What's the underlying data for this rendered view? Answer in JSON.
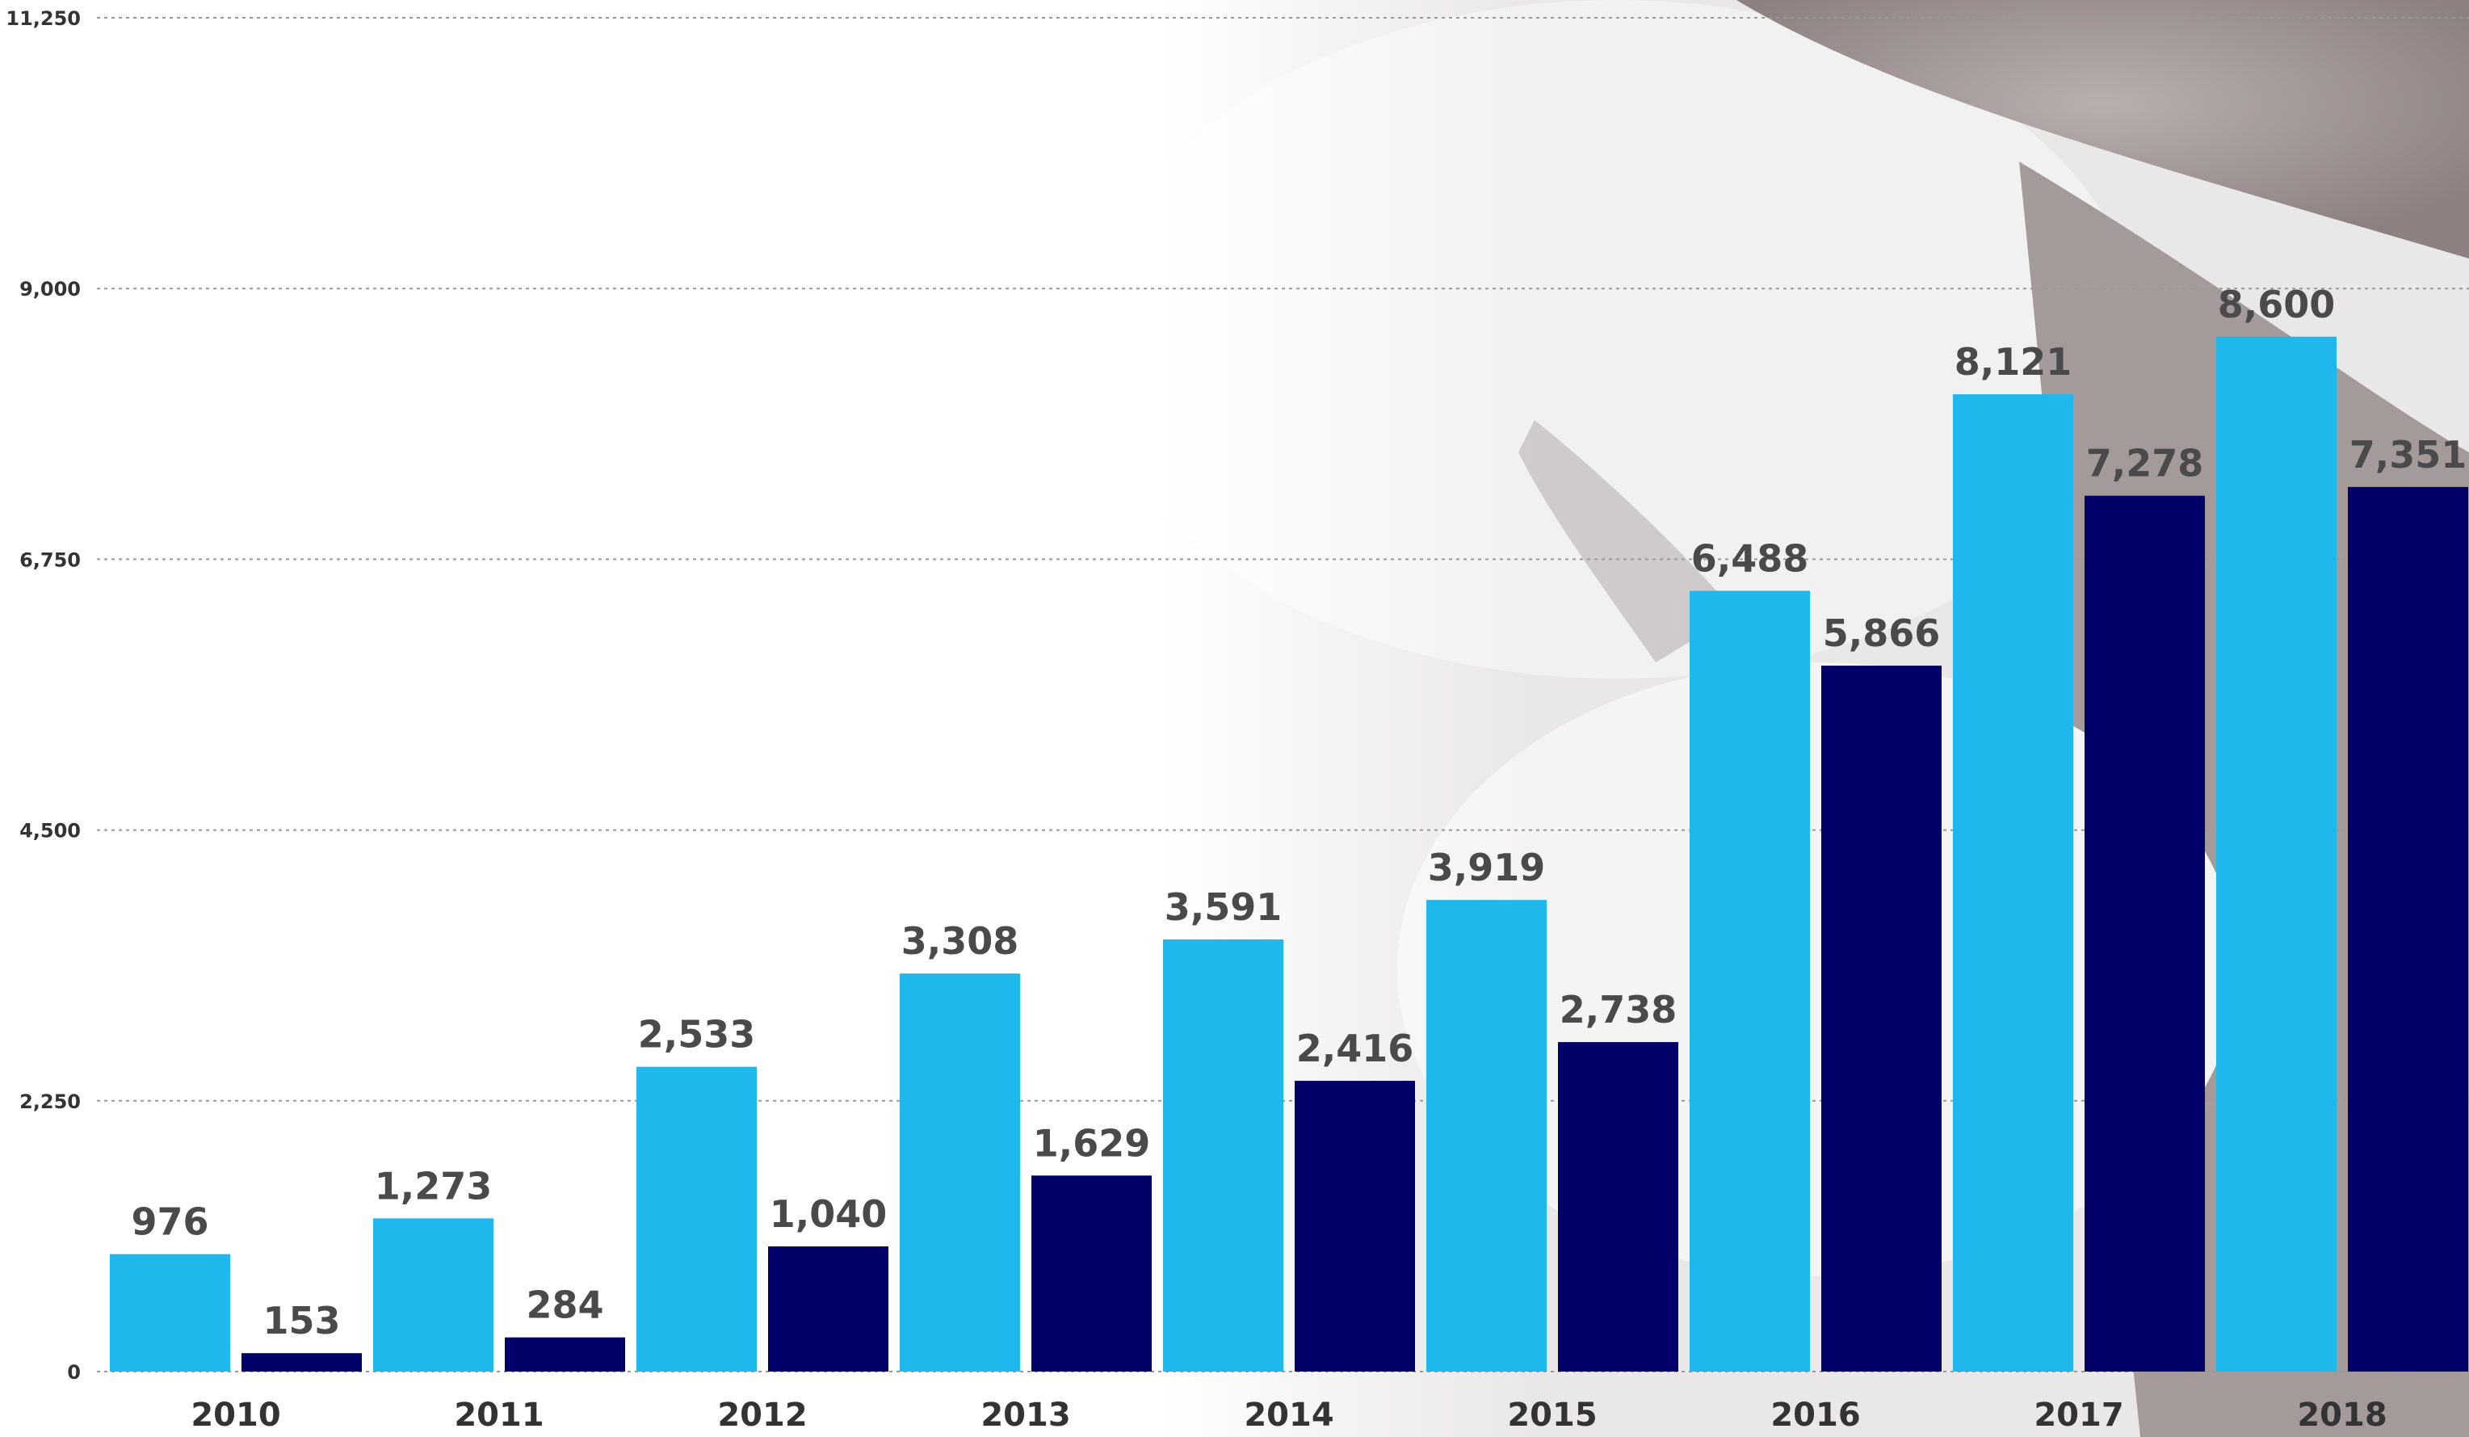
{
  "chart_data": {
    "type": "bar",
    "categories": [
      "2010",
      "2011",
      "2012",
      "2013",
      "2014",
      "2015",
      "2016",
      "2017",
      "2018"
    ],
    "series": [
      {
        "values": [
          976,
          1273,
          2533,
          3308,
          3591,
          3919,
          6488,
          8121,
          8600
        ]
      },
      {
        "values": [
          153,
          284,
          1040,
          1629,
          2416,
          2738,
          5866,
          7278,
          7351
        ]
      }
    ],
    "value_labels": [
      [
        "976",
        "1,273",
        "2,533",
        "3,308",
        "3,591",
        "3,919",
        "6,488",
        "8,121",
        "8,600"
      ],
      [
        "153",
        "284",
        "1,040",
        "1,629",
        "2,416",
        "2,738",
        "5,866",
        "7,278",
        "7,351"
      ]
    ],
    "ylim": [
      0,
      11250
    ],
    "y_ticks": [
      0,
      2250,
      4500,
      6750,
      9000,
      11250
    ],
    "y_tick_labels": [
      "0",
      "2,250",
      "4,500",
      "6,750",
      "9,000",
      "11,250"
    ],
    "grid": "horizontal-dashed",
    "legend": "none",
    "colors": {
      "series_1": "#1eb8ec",
      "series_2": "#000068",
      "grid": "#999999",
      "text": "#333333",
      "data_label": "#4a4a4a"
    }
  }
}
